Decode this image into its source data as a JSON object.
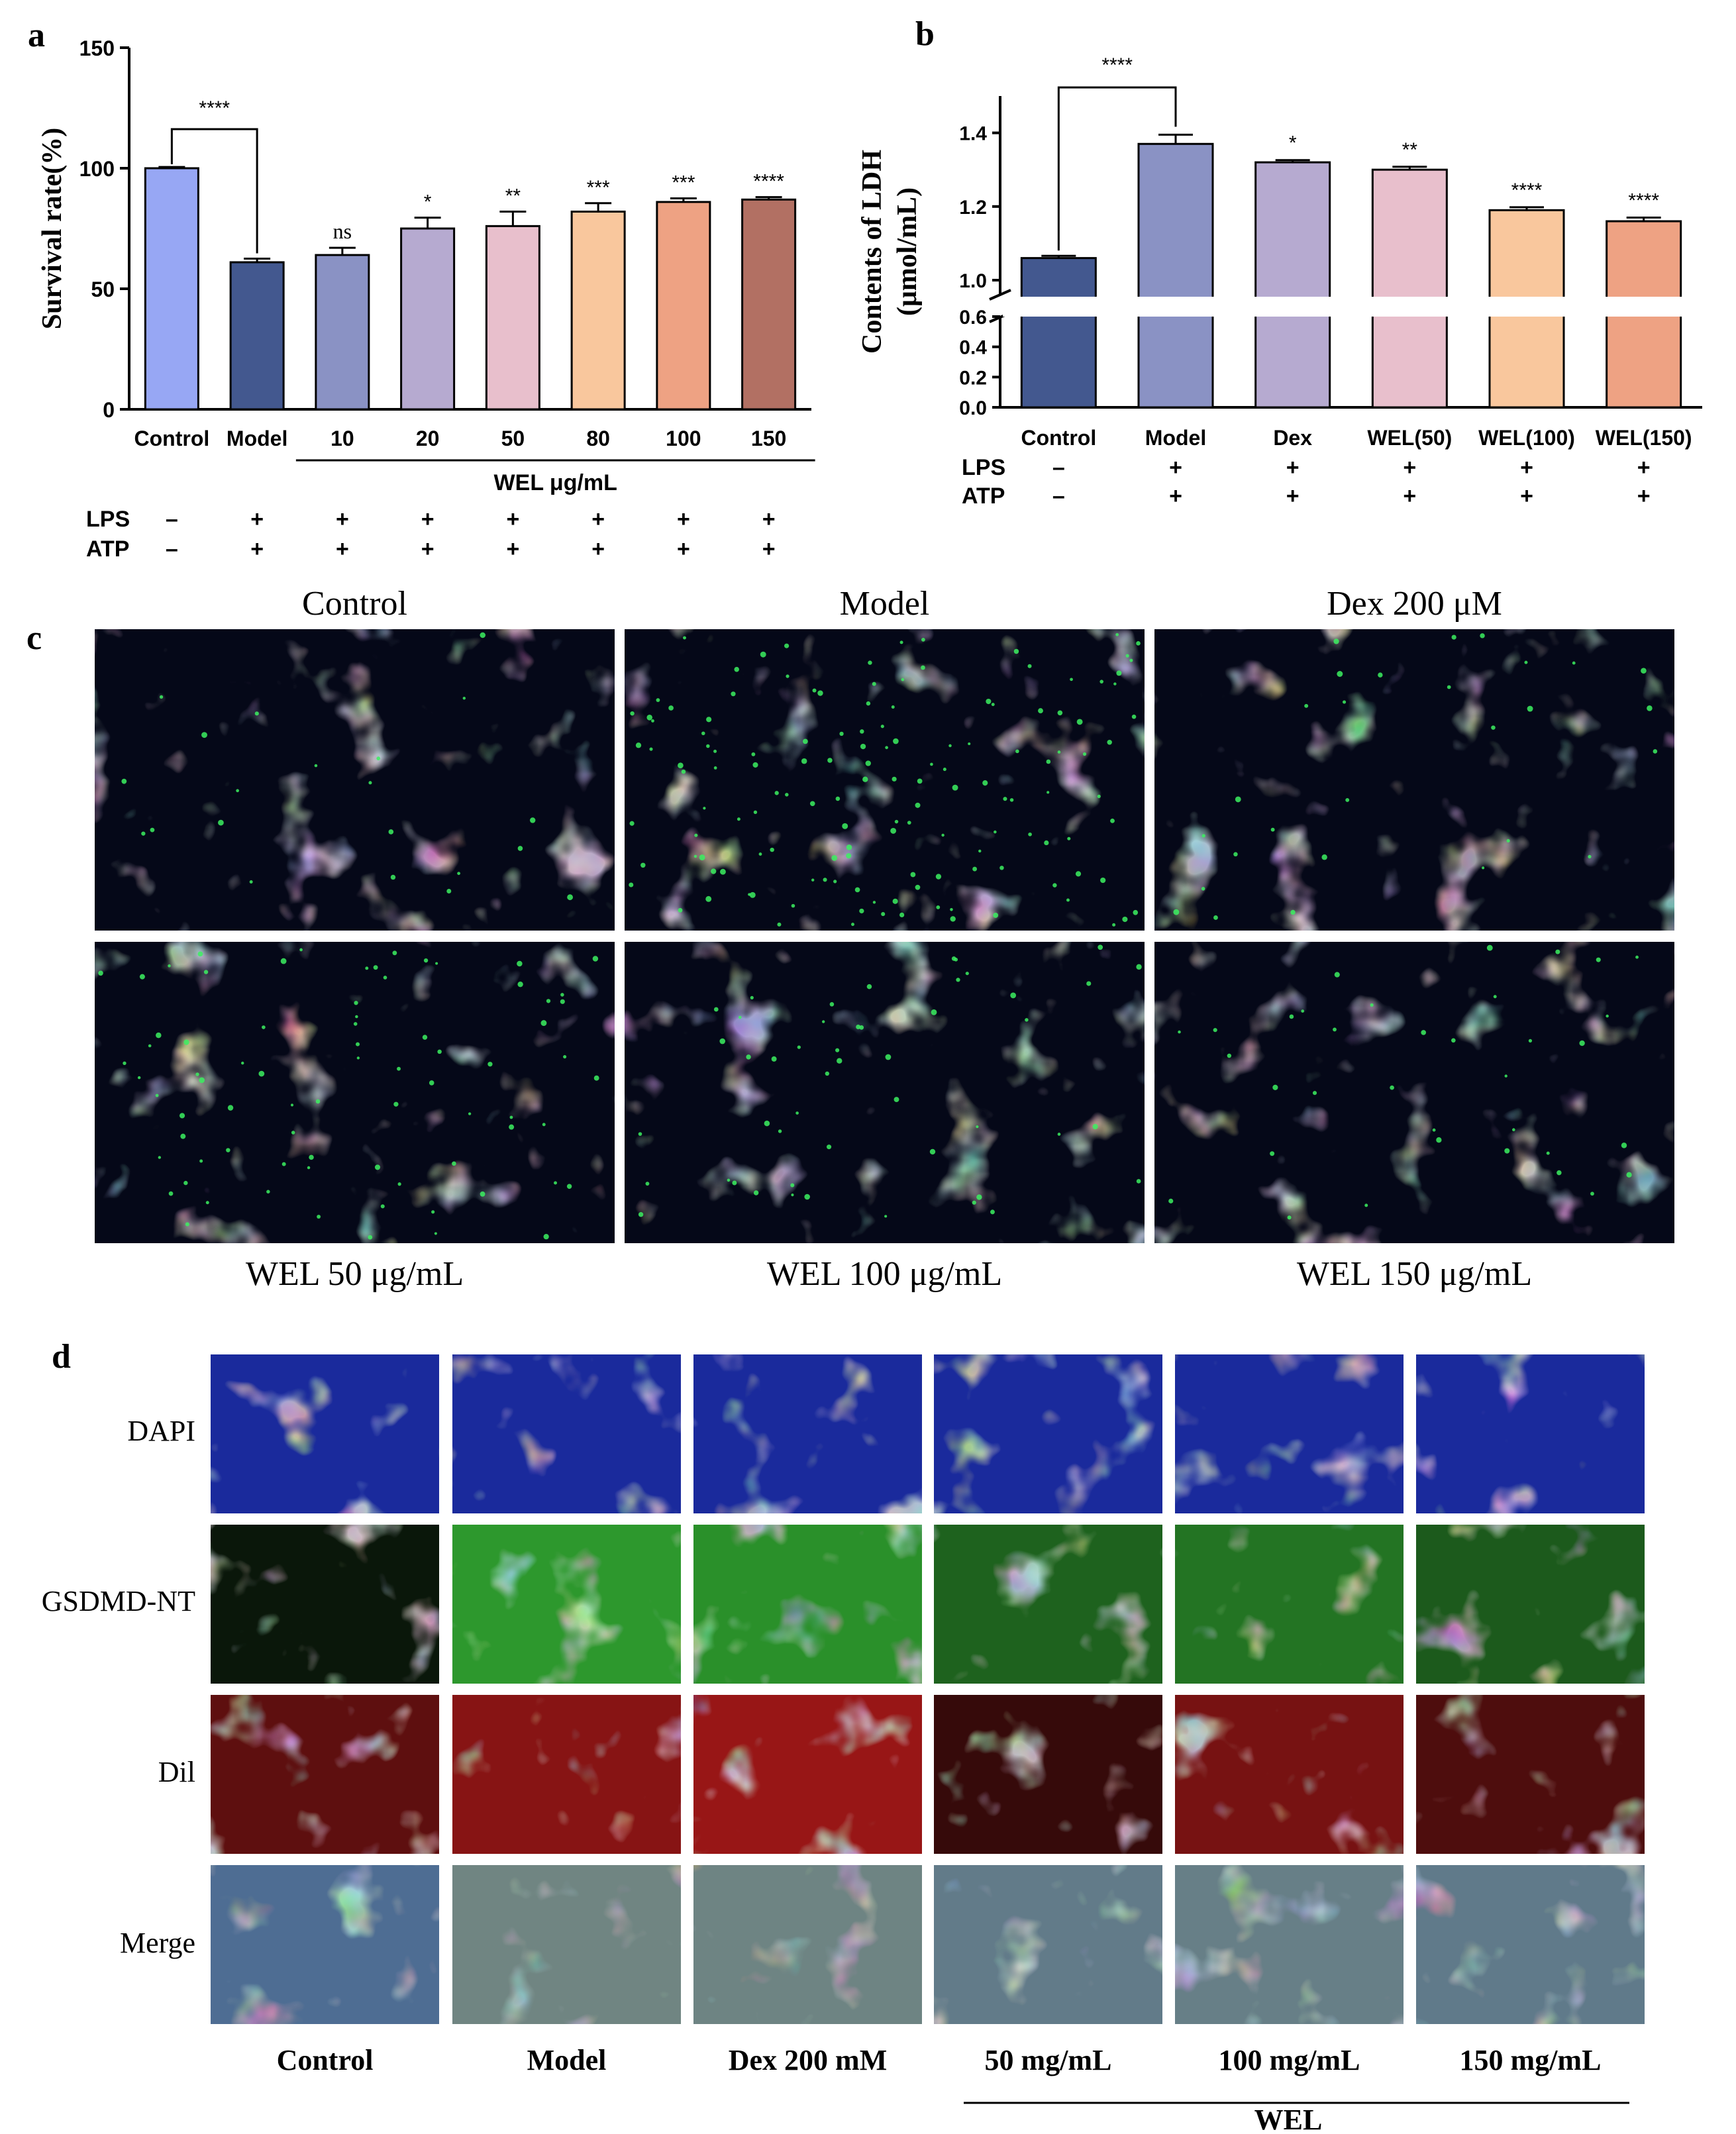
{
  "panels": {
    "a": "a",
    "b": "b",
    "c": "c",
    "d": "d"
  },
  "treatments": {
    "lps": "LPS",
    "atp": "ATP",
    "minus": "–",
    "plus": "+"
  },
  "chart_data": [
    {
      "id": "a",
      "type": "bar",
      "ylabel": "Survival rate(%)",
      "xlabel": "WEL μg/mL",
      "categories": [
        "Control",
        "Model",
        "10",
        "20",
        "50",
        "80",
        "100",
        "150"
      ],
      "values": [
        100,
        61,
        64,
        75,
        76,
        82,
        86,
        87
      ],
      "errors": [
        0.5,
        1.5,
        3,
        4.5,
        6,
        3.5,
        1.5,
        1
      ],
      "significance": [
        "",
        "",
        "ns",
        "*",
        "**",
        "***",
        "***",
        "****"
      ],
      "comparison": {
        "from": "Control",
        "to": "Model",
        "label": "****"
      },
      "colors": [
        "#97a7f4",
        "#43588f",
        "#8a92c4",
        "#b6aad0",
        "#e8bfcc",
        "#f9c79d",
        "#eea283",
        "#b27063"
      ],
      "ylim": [
        0,
        150
      ],
      "yticks": [
        0,
        50,
        100,
        150
      ],
      "lps": [
        "–",
        "+",
        "+",
        "+",
        "+",
        "+",
        "+",
        "+"
      ],
      "atp": [
        "–",
        "+",
        "+",
        "+",
        "+",
        "+",
        "+",
        "+"
      ],
      "grid": false
    },
    {
      "id": "b",
      "type": "bar",
      "ylabel": "Contents of LDH",
      "ylabel2": "(μmol/mL)",
      "categories": [
        "Control",
        "Model",
        "Dex",
        "WEL(50)",
        "WEL(100)",
        "WEL(150)"
      ],
      "values": [
        1.06,
        1.37,
        1.32,
        1.3,
        1.19,
        1.16
      ],
      "errors": [
        0.006,
        0.025,
        0.006,
        0.008,
        0.008,
        0.01
      ],
      "significance": [
        "",
        "",
        "*",
        "**",
        "****",
        "****"
      ],
      "comparison": {
        "from": "Control",
        "to": "Model",
        "label": "****"
      },
      "colors": [
        "#43588f",
        "#8a92c4",
        "#b6aad0",
        "#e8bfcc",
        "#f9c79d",
        "#eea283"
      ],
      "axis_break": [
        0.6,
        1.0
      ],
      "yticks_lower": [
        "0.0",
        "0.2",
        "0.4",
        "0.6"
      ],
      "yticks_upper": [
        "1.0",
        "1.2",
        "1.4"
      ],
      "lps": [
        "–",
        "+",
        "+",
        "+",
        "+",
        "+"
      ],
      "atp": [
        "–",
        "+",
        "+",
        "+",
        "+",
        "+"
      ],
      "grid": false
    }
  ],
  "panel_c": {
    "top_labels": [
      "Control",
      "Model",
      "Dex 200 μM"
    ],
    "bottom_labels": [
      "WEL 50 μg/mL",
      "WEL 100 μg/mL",
      "WEL 150 μg/mL"
    ]
  },
  "panel_d": {
    "row_labels": [
      "DAPI",
      "GSDMD-NT",
      "Dil",
      "Merge"
    ],
    "column_labels": [
      "Control",
      "Model",
      "Dex 200 mM",
      "50 mg/mL",
      "100 mg/mL",
      "150 mg/mL"
    ],
    "group_label": "WEL",
    "green_intensity": [
      0.12,
      0.95,
      0.9,
      0.6,
      0.72,
      0.55
    ],
    "red_intensity": [
      0.55,
      0.8,
      0.9,
      0.3,
      0.7,
      0.45
    ]
  },
  "colors": {
    "dapi_blue": "#1a2a9c",
    "gsdmd_green": "#2fa02f",
    "dil_red": "#a81818",
    "axis": "#000000"
  }
}
